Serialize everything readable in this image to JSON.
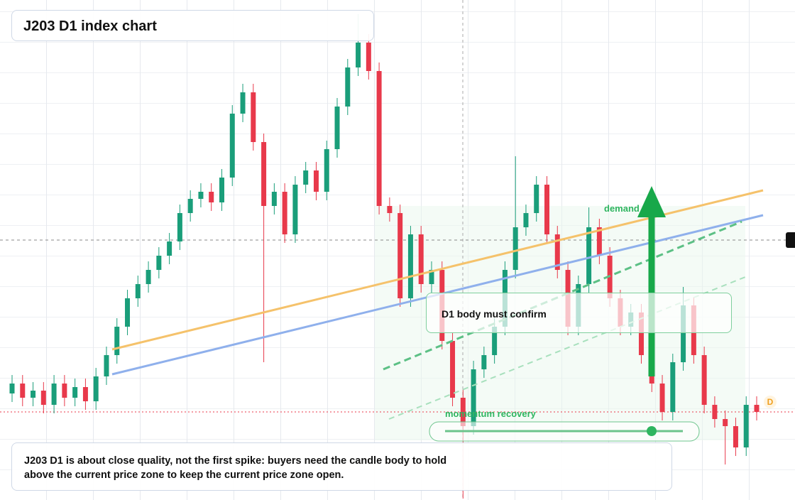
{
  "chart_data": {
    "type": "candlestick",
    "title": "J203 D1 index chart",
    "annotations": [
      "demand side",
      "D1 body must confirm",
      "momentum recovery",
      "J203 D1 is about close quality, not the first spike: buyers need the candle body to hold above the current price zone to keep the current price zone open.",
      "D"
    ],
    "ylim": [
      0,
      704
    ],
    "up_color": "#1a9e7a",
    "down_color": "#e8394b",
    "open": [
      150,
      164,
      144,
      154,
      134,
      164,
      144,
      159,
      139,
      174,
      204,
      244,
      284,
      304,
      324,
      344,
      364,
      404,
      424,
      434,
      419,
      454,
      544,
      574,
      504,
      414,
      434,
      374,
      444,
      464,
      434,
      494,
      554,
      609,
      644,
      604,
      414,
      404,
      284,
      374,
      304,
      324,
      224,
      144,
      104,
      184,
      204,
      244,
      324,
      384,
      404,
      444,
      374,
      324,
      244,
      304,
      384,
      344,
      284,
      244,
      264,
      204,
      164,
      124,
      194,
      274,
      204,
      134,
      114,
      104,
      74,
      134
    ],
    "high": [
      176,
      176,
      166,
      166,
      176,
      176,
      171,
      171,
      186,
      216,
      256,
      296,
      316,
      336,
      356,
      376,
      416,
      436,
      446,
      446,
      466,
      556,
      586,
      586,
      516,
      446,
      446,
      456,
      476,
      476,
      506,
      566,
      621,
      684,
      656,
      616,
      426,
      416,
      386,
      386,
      336,
      336,
      236,
      156,
      196,
      216,
      256,
      336,
      484,
      416,
      456,
      456,
      386,
      336,
      316,
      412,
      396,
      356,
      296,
      276,
      276,
      216,
      176,
      206,
      300,
      286,
      216,
      146,
      126,
      116,
      146,
      146
    ],
    "low": [
      138,
      132,
      132,
      122,
      122,
      132,
      132,
      127,
      127,
      162,
      192,
      232,
      272,
      292,
      312,
      332,
      352,
      392,
      412,
      407,
      407,
      442,
      532,
      492,
      194,
      402,
      362,
      362,
      432,
      422,
      422,
      482,
      542,
      597,
      592,
      402,
      392,
      272,
      272,
      292,
      292,
      212,
      132,
      2,
      92,
      172,
      192,
      232,
      312,
      372,
      392,
      362,
      312,
      232,
      232,
      292,
      332,
      272,
      232,
      232,
      192,
      152,
      112,
      112,
      182,
      192,
      122,
      102,
      50,
      62,
      62,
      112
    ],
    "close": [
      164,
      144,
      154,
      134,
      164,
      144,
      159,
      139,
      174,
      204,
      244,
      284,
      304,
      324,
      344,
      364,
      404,
      424,
      434,
      419,
      454,
      544,
      574,
      504,
      414,
      434,
      374,
      444,
      464,
      434,
      494,
      554,
      609,
      644,
      604,
      414,
      404,
      284,
      374,
      304,
      324,
      224,
      144,
      104,
      184,
      204,
      244,
      324,
      384,
      404,
      444,
      374,
      324,
      244,
      304,
      384,
      344,
      284,
      244,
      264,
      204,
      164,
      124,
      194,
      274,
      204,
      134,
      114,
      104,
      74,
      134,
      124
    ]
  }
}
